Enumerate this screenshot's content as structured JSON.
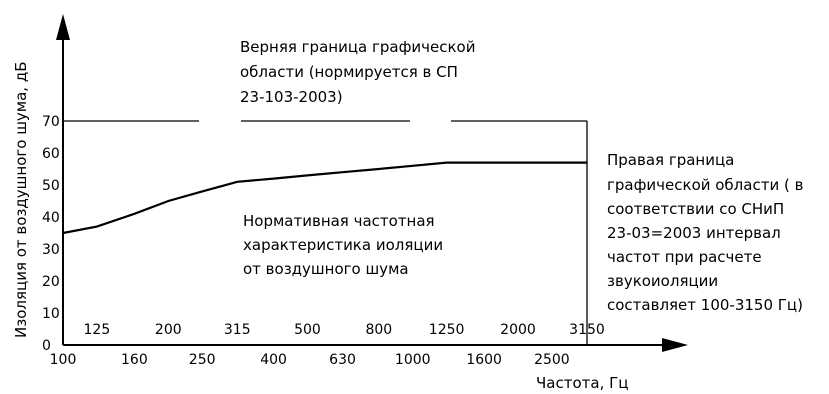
{
  "chart_data": {
    "type": "line",
    "ylabel": "Изоляция от воздушного шума, дБ",
    "xlabel": "Частота, Гц",
    "x_ticks_top": [
      "125",
      "200",
      "315",
      "500",
      "800",
      "1250",
      "2000",
      "3150"
    ],
    "x_ticks_bottom": [
      "100",
      "160",
      "250",
      "400",
      "630",
      "1000",
      "1600",
      "2500"
    ],
    "y_ticks": [
      "0",
      "10",
      "20",
      "30",
      "40",
      "50",
      "60",
      "70"
    ],
    "ylim": [
      0,
      70
    ],
    "series": [
      {
        "x": [
          100,
          125,
          160,
          200,
          250,
          315,
          400,
          500,
          630,
          800,
          1000,
          1250,
          1600,
          2000,
          2500,
          3150
        ],
        "values": [
          35,
          37,
          41,
          45,
          48,
          51,
          52,
          53,
          54,
          55,
          56,
          57,
          57,
          57,
          57,
          57
        ]
      }
    ],
    "annotations": {
      "upper_boundary": [
        "Верняя граница графической",
        "области (нормируется в СП",
        "23-103-2003)"
      ],
      "curve": [
        "Нормативная частотная",
        "характеристика иоляции",
        "от воздушного шума"
      ],
      "right_boundary": [
        "Правая граница",
        "графической области ( в",
        "соответствии со СНиП",
        "23-03=2003 интервал",
        "частот при расчете",
        "звукоиоляции",
        "составляет 100-3150 Гц)"
      ]
    }
  }
}
